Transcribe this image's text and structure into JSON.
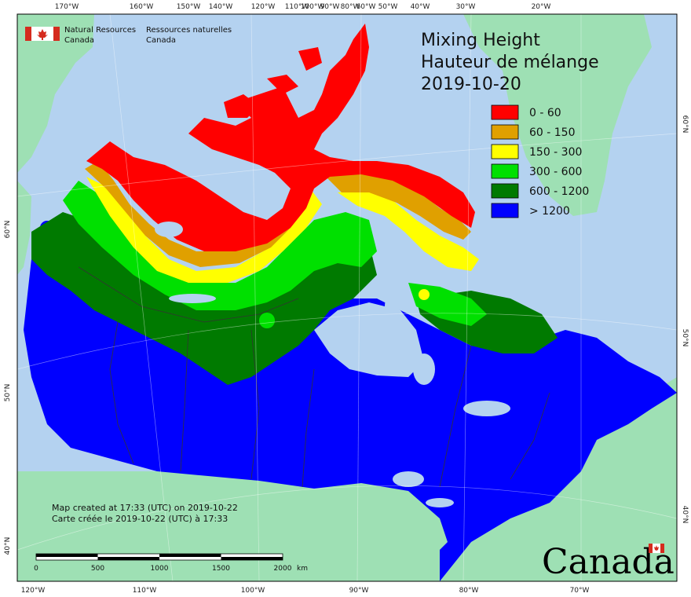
{
  "agency": {
    "en_line1": "Natural Resources",
    "en_line2": "Canada",
    "fr_line1": "Ressources naturelles",
    "fr_line2": "Canada"
  },
  "title": {
    "line1": "Mixing Height",
    "line2": "Hauteur de mélange",
    "date": "2019-10-20"
  },
  "legend": [
    {
      "label": "0 - 60",
      "color": "#ff0000"
    },
    {
      "label": "60 - 150",
      "color": "#e0a000"
    },
    {
      "label": "150 - 300",
      "color": "#ffff00"
    },
    {
      "label": "300 - 600",
      "color": "#00e000"
    },
    {
      "label": "600 - 1200",
      "color": "#007a00"
    },
    {
      "label": "> 1200",
      "color": "#0000ff"
    }
  ],
  "graticule": {
    "top": [
      "170°W",
      "160°W",
      "150°W",
      "140°W",
      "120°W",
      "110°W",
      "100°W",
      "90°W",
      "80°W",
      "60°W",
      "50°W",
      "40°W",
      "30°W",
      "20°W"
    ],
    "bottom": [
      "120°W",
      "110°W",
      "100°W",
      "90°W",
      "80°W",
      "70°W"
    ],
    "left": [
      "60°N",
      "50°N",
      "40°N"
    ],
    "right": [
      "60°N",
      "50°N",
      "40°N"
    ]
  },
  "notes": {
    "line1": "Map created at 17:33 (UTC) on 2019-10-22",
    "line2": "Carte créée le 2019-10-22 (UTC) à 17:33"
  },
  "scale_bar": {
    "ticks": [
      "0",
      "500",
      "1000",
      "1500",
      "2000"
    ],
    "unit": "km"
  },
  "wordmark": "Canada",
  "colors": {
    "ocean": "#b4d2f0",
    "foreign_land": "#9ee0b4",
    "frame": "#000000"
  }
}
